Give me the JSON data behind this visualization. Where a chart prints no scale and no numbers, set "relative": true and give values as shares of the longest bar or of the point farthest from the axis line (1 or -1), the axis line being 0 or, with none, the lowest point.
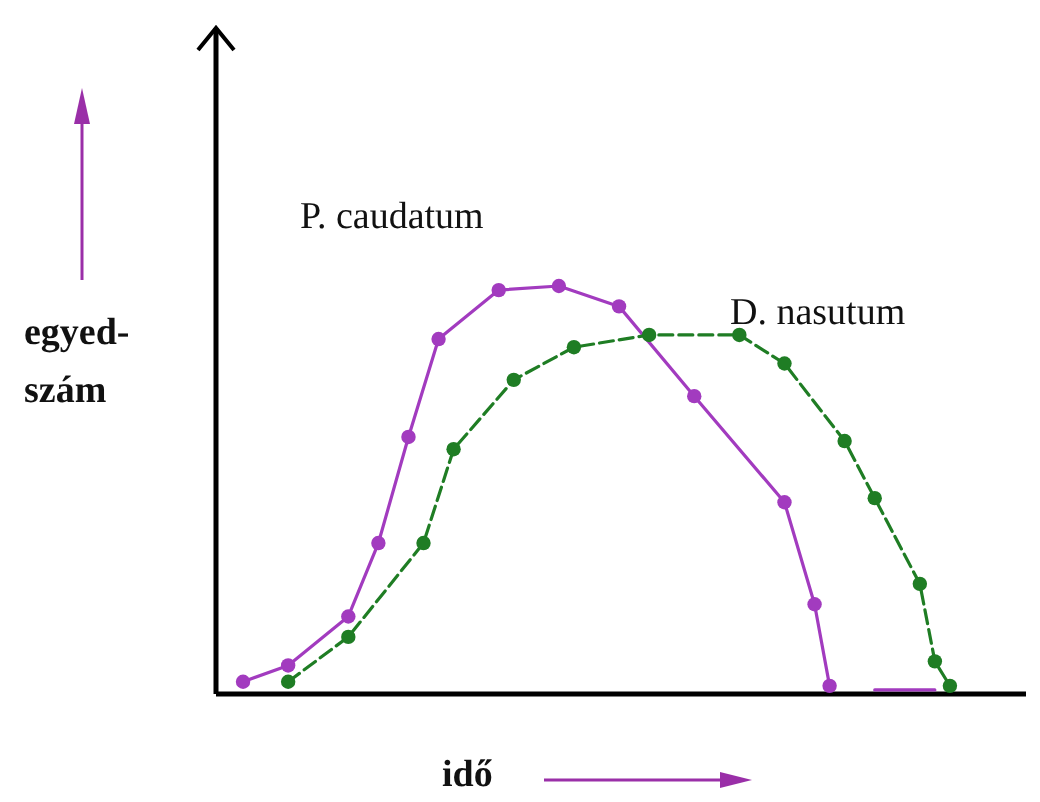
{
  "chart_data": {
    "type": "line",
    "relative": true,
    "xlabel": "idő",
    "ylabel": "egyed-szám",
    "tick_labels": false,
    "legend": "top",
    "marker": "circle",
    "categories": [
      null,
      null,
      null,
      null,
      null,
      null,
      null,
      null,
      null,
      null,
      null,
      null,
      null,
      null,
      null,
      null,
      null,
      null,
      null,
      null,
      null,
      null,
      null,
      null,
      null,
      null,
      null,
      null,
      null,
      null,
      null,
      null,
      null,
      null,
      null,
      null,
      null,
      null,
      null,
      null,
      null,
      null,
      null,
      null,
      null,
      null,
      null,
      null,
      null,
      null,
      null
    ],
    "series": [
      {
        "name": "P. caudatum",
        "color": "#a23bbf",
        "line_style": "solid",
        "values": [
          null,
          0.03,
          null,
          null,
          0.07,
          null,
          null,
          null,
          0.19,
          null,
          0.37,
          null,
          0.63,
          null,
          0.87,
          null,
          null,
          null,
          0.99,
          null,
          null,
          null,
          1,
          null,
          null,
          null,
          0.95,
          null,
          null,
          null,
          null,
          0.73,
          null,
          null,
          null,
          null,
          null,
          0.47,
          null,
          0.22,
          0.02,
          null,
          null,
          null,
          null,
          null,
          null,
          null,
          null,
          null,
          null
        ]
      },
      {
        "name": "D. nasutum",
        "color": "#1f7d24",
        "line_style": "dashed",
        "values": [
          null,
          null,
          null,
          null,
          0.03,
          null,
          null,
          null,
          0.14,
          null,
          null,
          null,
          null,
          0.37,
          null,
          0.6,
          null,
          null,
          null,
          0.77,
          null,
          null,
          null,
          0.85,
          null,
          null,
          null,
          null,
          0.88,
          null,
          null,
          null,
          null,
          null,
          0.88,
          null,
          null,
          0.81,
          null,
          null,
          null,
          0.62,
          null,
          0.48,
          null,
          null,
          0.27,
          0.08,
          0.02,
          null,
          null
        ]
      },
      {
        "color": "#a23bbf",
        "marker": "none",
        "line_style": "solid",
        "values": [
          null,
          null,
          null,
          null,
          null,
          null,
          null,
          null,
          null,
          null,
          null,
          null,
          null,
          null,
          null,
          null,
          null,
          null,
          null,
          null,
          null,
          null,
          null,
          null,
          null,
          null,
          null,
          null,
          null,
          null,
          null,
          null,
          null,
          null,
          null,
          null,
          null,
          null,
          null,
          null,
          null,
          null,
          null,
          0.01,
          null,
          null,
          null,
          0.01,
          null,
          null,
          null
        ]
      }
    ]
  }
}
